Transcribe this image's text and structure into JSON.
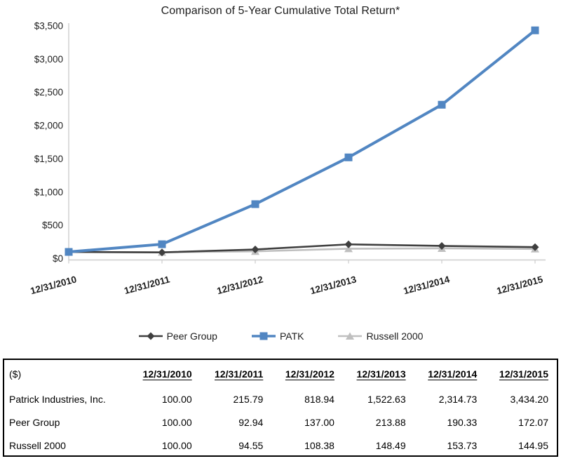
{
  "chart_data": {
    "type": "line",
    "title": "Comparison of 5-Year Cumulative Total Return*",
    "categories": [
      "12/31/2010",
      "12/31/2011",
      "12/31/2012",
      "12/31/2013",
      "12/31/2014",
      "12/31/2015"
    ],
    "series": [
      {
        "name": "Peer Group",
        "color": "#3f3f3f",
        "marker": "diamond",
        "values": [
          100.0,
          92.94,
          137.0,
          213.88,
          190.33,
          172.07
        ]
      },
      {
        "name": "PATK",
        "color": "#5186c2",
        "marker": "square",
        "values": [
          100.0,
          215.79,
          818.94,
          1522.63,
          2314.73,
          3434.2
        ]
      },
      {
        "name": "Russell 2000",
        "color": "#bfbfbf",
        "marker": "triangle",
        "values": [
          100.0,
          94.55,
          108.38,
          148.49,
          153.73,
          144.95
        ]
      }
    ],
    "ylim": [
      0,
      3500
    ],
    "y_tick_step": 500,
    "y_tick_labels": [
      "$0",
      "$500",
      "$1,000",
      "$1,500",
      "$2,000",
      "$2,500",
      "$3,000",
      "$3,500"
    ],
    "xlabel": "",
    "ylabel": "",
    "grid": false,
    "legend_position": "bottom",
    "axis_color": "#cdcdcd"
  },
  "table": {
    "unit_label": "($)",
    "columns": [
      "12/31/2010",
      "12/31/2011",
      "12/31/2012",
      "12/31/2013",
      "12/31/2014",
      "12/31/2015"
    ],
    "rows": [
      {
        "label": "Patrick Industries, Inc.",
        "values": [
          "100.00",
          "215.79",
          "818.94",
          "1,522.63",
          "2,314.73",
          "3,434.20"
        ]
      },
      {
        "label": "Peer Group",
        "values": [
          "100.00",
          "92.94",
          "137.00",
          "213.88",
          "190.33",
          "172.07"
        ]
      },
      {
        "label": "Russell 2000",
        "values": [
          "100.00",
          "94.55",
          "108.38",
          "148.49",
          "153.73",
          "144.95"
        ]
      }
    ]
  }
}
